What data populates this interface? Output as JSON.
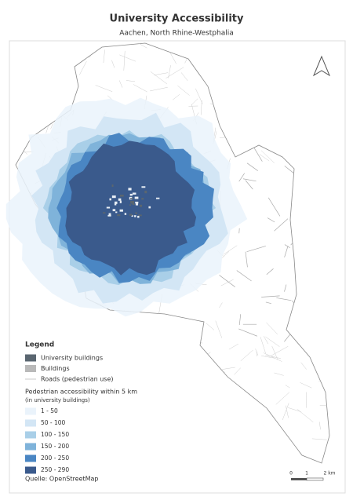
{
  "title": "University Accessibility",
  "subtitle": "Aachen,  North Rhine-Westphalia",
  "legend": {
    "title": "Legend",
    "items": [
      {
        "label": "University buildings",
        "color": "#5a6670"
      },
      {
        "label": "Buildings",
        "color": "#b9b9b9"
      },
      {
        "label": "Roads (pedestrian use)",
        "color": "#c8c8c8"
      }
    ],
    "accessibility_title": "Pedestrian accessibility within 5 km",
    "accessibility_subtitle": "(in university buildings)",
    "classes": [
      {
        "label": "1 - 50",
        "color": "#eaf3fb"
      },
      {
        "label": "50 - 100",
        "color": "#d3e6f5"
      },
      {
        "label": "100 - 150",
        "color": "#a9cfe8"
      },
      {
        "label": "150 - 200",
        "color": "#7fb3da"
      },
      {
        "label": "200 - 250",
        "color": "#4a86c3"
      },
      {
        "label": "250 - 290",
        "color": "#3a5a8c"
      }
    ]
  },
  "scale_bar": {
    "labels": [
      "0",
      "1",
      "2 km"
    ]
  },
  "source": "Quelle: OpenStreetMap"
}
